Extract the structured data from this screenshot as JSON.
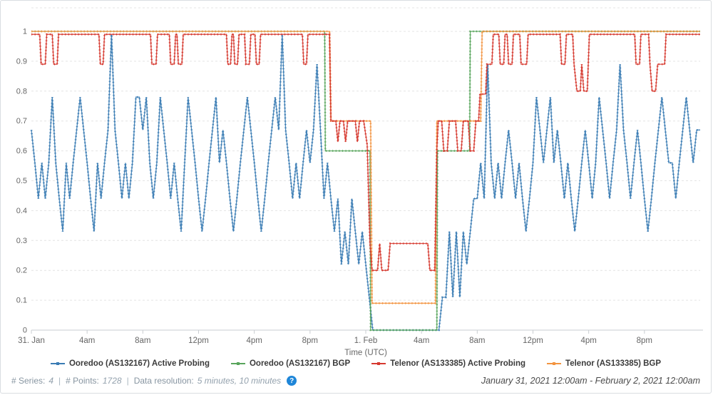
{
  "chart_data": {
    "type": "line",
    "title": "",
    "xlabel": "Time (UTC)",
    "x_axis": {
      "unit": "hours since January 31, 2021 12:00am UTC",
      "min": 0,
      "max": 48,
      "ticks": [
        {
          "t": 0,
          "label": "31. Jan"
        },
        {
          "t": 4,
          "label": "4am"
        },
        {
          "t": 8,
          "label": "8am"
        },
        {
          "t": 12,
          "label": "12pm"
        },
        {
          "t": 16,
          "label": "4pm"
        },
        {
          "t": 20,
          "label": "8pm"
        },
        {
          "t": 24,
          "label": "1. Feb"
        },
        {
          "t": 28,
          "label": "4am"
        },
        {
          "t": 32,
          "label": "8am"
        },
        {
          "t": 36,
          "label": "12pm"
        },
        {
          "t": 40,
          "label": "4pm"
        },
        {
          "t": 44,
          "label": "8pm"
        }
      ]
    },
    "y_axis": {
      "min": 0,
      "max": 1.08,
      "tick_labels": [
        "0",
        "0.1",
        "0.2",
        "0.3",
        "0.4",
        "0.5",
        "0.6",
        "0.7",
        "0.8",
        "0.9",
        "1"
      ]
    },
    "grid": {
      "horizontal": "dashed",
      "vertical": false
    },
    "legend_position": "bottom",
    "series": [
      {
        "name": "Ooredoo (AS132167) Active Probing",
        "color": "#3a7cb4",
        "sampling": "uniform",
        "t0": 0,
        "dt_hours": 0.25,
        "values": [
          0.67,
          0.56,
          0.44,
          0.56,
          0.44,
          0.56,
          0.78,
          0.56,
          0.44,
          0.33,
          0.56,
          0.44,
          0.56,
          0.67,
          0.78,
          0.67,
          0.56,
          0.44,
          0.33,
          0.56,
          0.44,
          0.56,
          0.67,
          0.99,
          0.67,
          0.56,
          0.44,
          0.56,
          0.44,
          0.56,
          0.78,
          0.78,
          0.67,
          0.78,
          0.56,
          0.44,
          0.56,
          0.78,
          0.67,
          0.56,
          0.44,
          0.56,
          0.44,
          0.33,
          0.56,
          0.78,
          0.67,
          0.56,
          0.44,
          0.33,
          0.44,
          0.56,
          0.67,
          0.78,
          0.56,
          0.67,
          0.56,
          0.44,
          0.33,
          0.44,
          0.56,
          0.67,
          0.78,
          0.67,
          0.56,
          0.44,
          0.33,
          0.44,
          0.56,
          0.67,
          0.78,
          0.67,
          0.99,
          0.67,
          0.56,
          0.44,
          0.56,
          0.44,
          0.56,
          0.67,
          0.56,
          0.67,
          0.89,
          0.67,
          0.44,
          0.56,
          0.44,
          0.33,
          0.44,
          0.22,
          0.33,
          0.22,
          0.44,
          0.33,
          0.22,
          0.33,
          0.22,
          0.11,
          0,
          0,
          0,
          0,
          0,
          0,
          0,
          0,
          0,
          0,
          0,
          0,
          0,
          0,
          0,
          0,
          0,
          0,
          0,
          0,
          0.11,
          0.11,
          0.33,
          0.11,
          0.33,
          0.11,
          0.33,
          0.22,
          0.33,
          0.44,
          0.44,
          0.56,
          0.44,
          0.89,
          0.56,
          0.44,
          0.56,
          0.44,
          0.56,
          0.67,
          0.56,
          0.44,
          0.56,
          0.44,
          0.33,
          0.44,
          0.56,
          0.78,
          0.67,
          0.56,
          0.67,
          0.78,
          0.56,
          0.67,
          0.56,
          0.44,
          0.56,
          0.44,
          0.33,
          0.44,
          0.56,
          0.67,
          0.56,
          0.44,
          0.56,
          0.78,
          0.67,
          0.56,
          0.44,
          0.56,
          0.67,
          0.89,
          0.67,
          0.56,
          0.44,
          0.56,
          0.67,
          0.56,
          0.44,
          0.33,
          0.44,
          0.56,
          0.67,
          0.78,
          0.67,
          0.56,
          0.56,
          0.44,
          0.56,
          0.67,
          0.78,
          0.67,
          0.56,
          0.67,
          0.67
        ]
      },
      {
        "name": "Ooredoo (AS132167) BGP",
        "color": "#58a55c",
        "sampling": "points",
        "points": [
          [
            0,
            1
          ],
          [
            21.05,
            1
          ],
          [
            21.1,
            0.6
          ],
          [
            24.3,
            0.6
          ],
          [
            24.35,
            0
          ],
          [
            29.1,
            0
          ],
          [
            29.15,
            0.6
          ],
          [
            31.45,
            0.6
          ],
          [
            31.5,
            1
          ],
          [
            48,
            1
          ]
        ]
      },
      {
        "name": "Telenor (AS133385) Active Probing",
        "color": "#d6392f",
        "sampling": "points",
        "points": [
          [
            0,
            0.99
          ],
          [
            0.6,
            0.99
          ],
          [
            0.7,
            0.89
          ],
          [
            1.0,
            0.89
          ],
          [
            1.1,
            0.99
          ],
          [
            1.5,
            0.99
          ],
          [
            1.6,
            0.89
          ],
          [
            1.85,
            0.89
          ],
          [
            1.95,
            0.99
          ],
          [
            4.85,
            0.99
          ],
          [
            4.95,
            0.89
          ],
          [
            5.15,
            0.89
          ],
          [
            5.25,
            0.99
          ],
          [
            8.55,
            0.99
          ],
          [
            8.65,
            0.89
          ],
          [
            8.95,
            0.89
          ],
          [
            9.05,
            0.99
          ],
          [
            9.9,
            0.99
          ],
          [
            10.0,
            0.89
          ],
          [
            10.25,
            0.89
          ],
          [
            10.35,
            0.99
          ],
          [
            10.45,
            0.99
          ],
          [
            10.55,
            0.89
          ],
          [
            10.8,
            0.89
          ],
          [
            10.9,
            0.99
          ],
          [
            14.0,
            0.99
          ],
          [
            14.1,
            0.89
          ],
          [
            14.3,
            0.89
          ],
          [
            14.4,
            0.99
          ],
          [
            14.5,
            0.99
          ],
          [
            14.6,
            0.89
          ],
          [
            14.8,
            0.89
          ],
          [
            14.9,
            0.99
          ],
          [
            15.3,
            0.99
          ],
          [
            15.4,
            0.89
          ],
          [
            15.65,
            0.89
          ],
          [
            15.75,
            0.99
          ],
          [
            16.05,
            0.99
          ],
          [
            16.15,
            0.89
          ],
          [
            16.35,
            0.89
          ],
          [
            16.45,
            0.99
          ],
          [
            19.45,
            0.99
          ],
          [
            19.55,
            0.89
          ],
          [
            19.75,
            0.89
          ],
          [
            19.85,
            0.99
          ],
          [
            21.4,
            0.99
          ],
          [
            21.5,
            0.7
          ],
          [
            21.85,
            0.7
          ],
          [
            22.0,
            0.63
          ],
          [
            22.15,
            0.7
          ],
          [
            22.4,
            0.7
          ],
          [
            22.55,
            0.63
          ],
          [
            22.7,
            0.7
          ],
          [
            23.25,
            0.7
          ],
          [
            23.4,
            0.63
          ],
          [
            23.55,
            0.7
          ],
          [
            23.85,
            0.7
          ],
          [
            24.1,
            0.62
          ],
          [
            24.3,
            0.29
          ],
          [
            24.45,
            0.2
          ],
          [
            24.85,
            0.2
          ],
          [
            25.0,
            0.29
          ],
          [
            25.15,
            0.2
          ],
          [
            25.6,
            0.2
          ],
          [
            25.75,
            0.29
          ],
          [
            28.45,
            0.29
          ],
          [
            28.6,
            0.2
          ],
          [
            28.95,
            0.2
          ],
          [
            29.1,
            0.6
          ],
          [
            29.2,
            0.7
          ],
          [
            29.45,
            0.7
          ],
          [
            29.6,
            0.6
          ],
          [
            29.85,
            0.6
          ],
          [
            30.0,
            0.7
          ],
          [
            30.45,
            0.7
          ],
          [
            30.6,
            0.6
          ],
          [
            30.85,
            0.6
          ],
          [
            31.0,
            0.7
          ],
          [
            31.35,
            0.7
          ],
          [
            31.5,
            0.6
          ],
          [
            31.75,
            0.6
          ],
          [
            31.9,
            0.7
          ],
          [
            32.1,
            0.7
          ],
          [
            32.2,
            0.79
          ],
          [
            32.6,
            0.79
          ],
          [
            32.7,
            0.89
          ],
          [
            33.05,
            0.89
          ],
          [
            33.15,
            0.99
          ],
          [
            33.55,
            0.99
          ],
          [
            33.65,
            0.89
          ],
          [
            33.9,
            0.89
          ],
          [
            34.0,
            0.99
          ],
          [
            34.15,
            0.99
          ],
          [
            34.25,
            0.89
          ],
          [
            34.5,
            0.89
          ],
          [
            34.6,
            0.99
          ],
          [
            35.05,
            0.99
          ],
          [
            35.15,
            0.89
          ],
          [
            35.55,
            0.89
          ],
          [
            35.65,
            0.99
          ],
          [
            37.95,
            0.99
          ],
          [
            38.05,
            0.89
          ],
          [
            38.3,
            0.89
          ],
          [
            38.4,
            0.99
          ],
          [
            38.85,
            0.99
          ],
          [
            38.95,
            0.89
          ],
          [
            39.15,
            0.8
          ],
          [
            39.4,
            0.8
          ],
          [
            39.5,
            0.89
          ],
          [
            39.65,
            0.8
          ],
          [
            39.9,
            0.8
          ],
          [
            40.05,
            0.99
          ],
          [
            43.3,
            0.99
          ],
          [
            43.4,
            0.89
          ],
          [
            43.65,
            0.89
          ],
          [
            43.75,
            0.99
          ],
          [
            44.3,
            0.99
          ],
          [
            44.4,
            0.89
          ],
          [
            44.55,
            0.8
          ],
          [
            44.8,
            0.8
          ],
          [
            44.95,
            0.89
          ],
          [
            45.45,
            0.89
          ],
          [
            45.55,
            0.99
          ],
          [
            48,
            0.99
          ]
        ]
      },
      {
        "name": "Telenor (AS133385) BGP",
        "color": "#f39440",
        "sampling": "points",
        "points": [
          [
            0,
            1
          ],
          [
            21.4,
            1
          ],
          [
            21.5,
            0.7
          ],
          [
            24.35,
            0.7
          ],
          [
            24.45,
            0.09
          ],
          [
            29.0,
            0.09
          ],
          [
            29.1,
            0.7
          ],
          [
            32.25,
            0.7
          ],
          [
            32.35,
            1
          ],
          [
            48,
            1
          ]
        ]
      }
    ]
  },
  "footer": {
    "stats": {
      "series_label": "# Series:",
      "series_value": "4",
      "points_label": "# Points:",
      "points_value": "1728",
      "resolution_label": "Data resolution:",
      "resolution_value": "5 minutes, 10 minutes",
      "separator": "|",
      "help_icon_glyph": "?"
    },
    "date_range": "January 31, 2021 12:00am - February 2, 2021 12:00am"
  }
}
